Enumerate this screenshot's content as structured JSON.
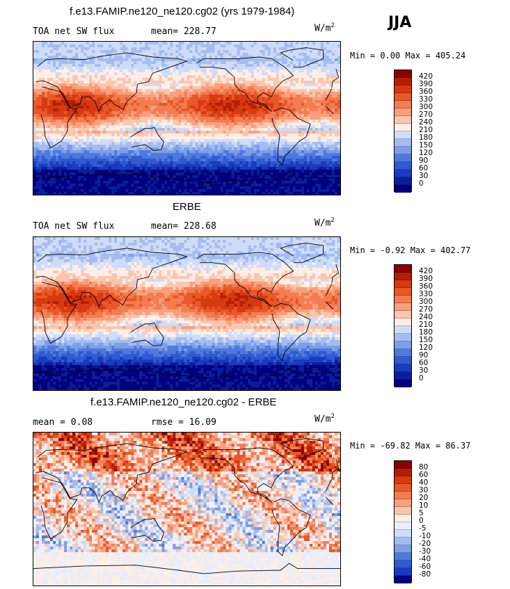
{
  "season": "JJA",
  "units_base": "W/m",
  "units_exp": "2",
  "panels": [
    {
      "title": "f.e13.FAMIP.ne120_ne120.cg02 (yrs 1979-1984)",
      "left_label": "TOA net SW flux",
      "stat_label": "mean= 228.77",
      "minmax": "Min =   0.00 Max = 405.24",
      "colorbar": {
        "labels": [
          "420",
          "390",
          "360",
          "330",
          "300",
          "270",
          "240",
          "210",
          "180",
          "150",
          "120",
          "90",
          "60",
          "30",
          "0"
        ],
        "colors": [
          "#8c0000",
          "#b51f00",
          "#d63a12",
          "#e85828",
          "#f37c50",
          "#f8a07e",
          "#fbc6ae",
          "#fdeee6",
          "#cfdcf8",
          "#a4bdf0",
          "#7d9fe8",
          "#5079de",
          "#2f5ad2",
          "#1a3bbd",
          "#0a1e9a",
          "#000080"
        ]
      },
      "map_kind": "abs"
    },
    {
      "title": "ERBE",
      "left_label": "TOA net SW flux",
      "stat_label": "mean= 228.68",
      "minmax": "Min =  -0.92 Max = 402.77",
      "colorbar": {
        "labels": [
          "420",
          "390",
          "360",
          "330",
          "300",
          "270",
          "240",
          "210",
          "180",
          "150",
          "120",
          "90",
          "60",
          "30",
          "0"
        ],
        "colors": [
          "#8c0000",
          "#b51f00",
          "#d63a12",
          "#e85828",
          "#f37c50",
          "#f8a07e",
          "#fbc6ae",
          "#fdeee6",
          "#cfdcf8",
          "#a4bdf0",
          "#7d9fe8",
          "#5079de",
          "#2f5ad2",
          "#1a3bbd",
          "#0a1e9a",
          "#000080"
        ]
      },
      "map_kind": "abs"
    },
    {
      "title": "f.e13.FAMIP.ne120_ne120.cg02 - ERBE",
      "left_label": "mean =    0.08",
      "stat_label": "rmse =   16.09",
      "minmax": "Min = -69.82 Max =  86.37",
      "colorbar": {
        "labels": [
          "80",
          "60",
          "40",
          "30",
          "20",
          "10",
          "5",
          "0",
          "-5",
          "-10",
          "-20",
          "-30",
          "-40",
          "-60",
          "-80"
        ],
        "colors": [
          "#8c0000",
          "#b51f00",
          "#d63a12",
          "#e85828",
          "#f37c50",
          "#f8a07e",
          "#fbc6ae",
          "#fdeee6",
          "#e8eefb",
          "#cfdcf8",
          "#a4bdf0",
          "#7d9fe8",
          "#5079de",
          "#2f5ad2",
          "#1a3bbd",
          "#000080"
        ]
      },
      "map_kind": "diff"
    }
  ]
}
